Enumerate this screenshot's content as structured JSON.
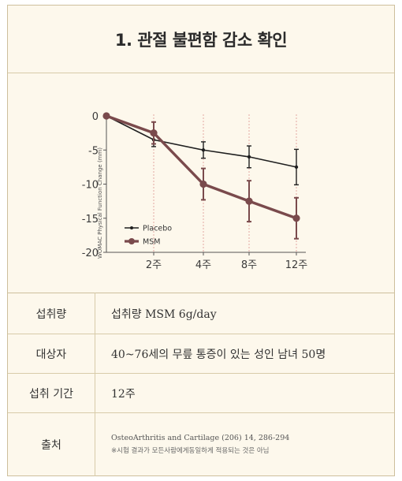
{
  "title": "1. 관절 불편함 감소 확인",
  "chart_data": {
    "type": "line",
    "categories": [
      "0",
      "2주",
      "4주",
      "8주",
      "12주"
    ],
    "x_tick_labels": [
      "2주",
      "4주",
      "8주",
      "12주"
    ],
    "ylabel": "WOMAC Physical Function Change (mm)",
    "ylim": [
      -20,
      0
    ],
    "yticks": [
      0,
      -5,
      -10,
      -15,
      -20
    ],
    "grid": "vertical dotted",
    "legend_position": "bottom-left",
    "series": [
      {
        "name": "Placebo",
        "color": "#1f1f1f",
        "values": [
          0,
          -3.5,
          -5,
          -6,
          -7.5
        ],
        "error": [
          0,
          1,
          1.2,
          1.6,
          2.6
        ]
      },
      {
        "name": "MSM",
        "color": "#7a4a4c",
        "values": [
          0,
          -2.5,
          -10,
          -12.5,
          -15
        ],
        "error": [
          0,
          1.6,
          2.3,
          3,
          3
        ]
      }
    ]
  },
  "table": {
    "rows": [
      {
        "label": "섭취량",
        "value": "섭취량 MSM 6g/day"
      },
      {
        "label": "대상자",
        "value": "40~76세의 무릎 통증이 있는 성인 남녀 50명"
      },
      {
        "label": "섭취 기간",
        "value": "12주"
      }
    ],
    "source": {
      "label": "출처",
      "line1": "OsteoArthritis and Cartilage (206) 14, 286-294",
      "line2": "※시험 결과가 모든사람에게동일하게 적용되는 것은 아님"
    }
  }
}
